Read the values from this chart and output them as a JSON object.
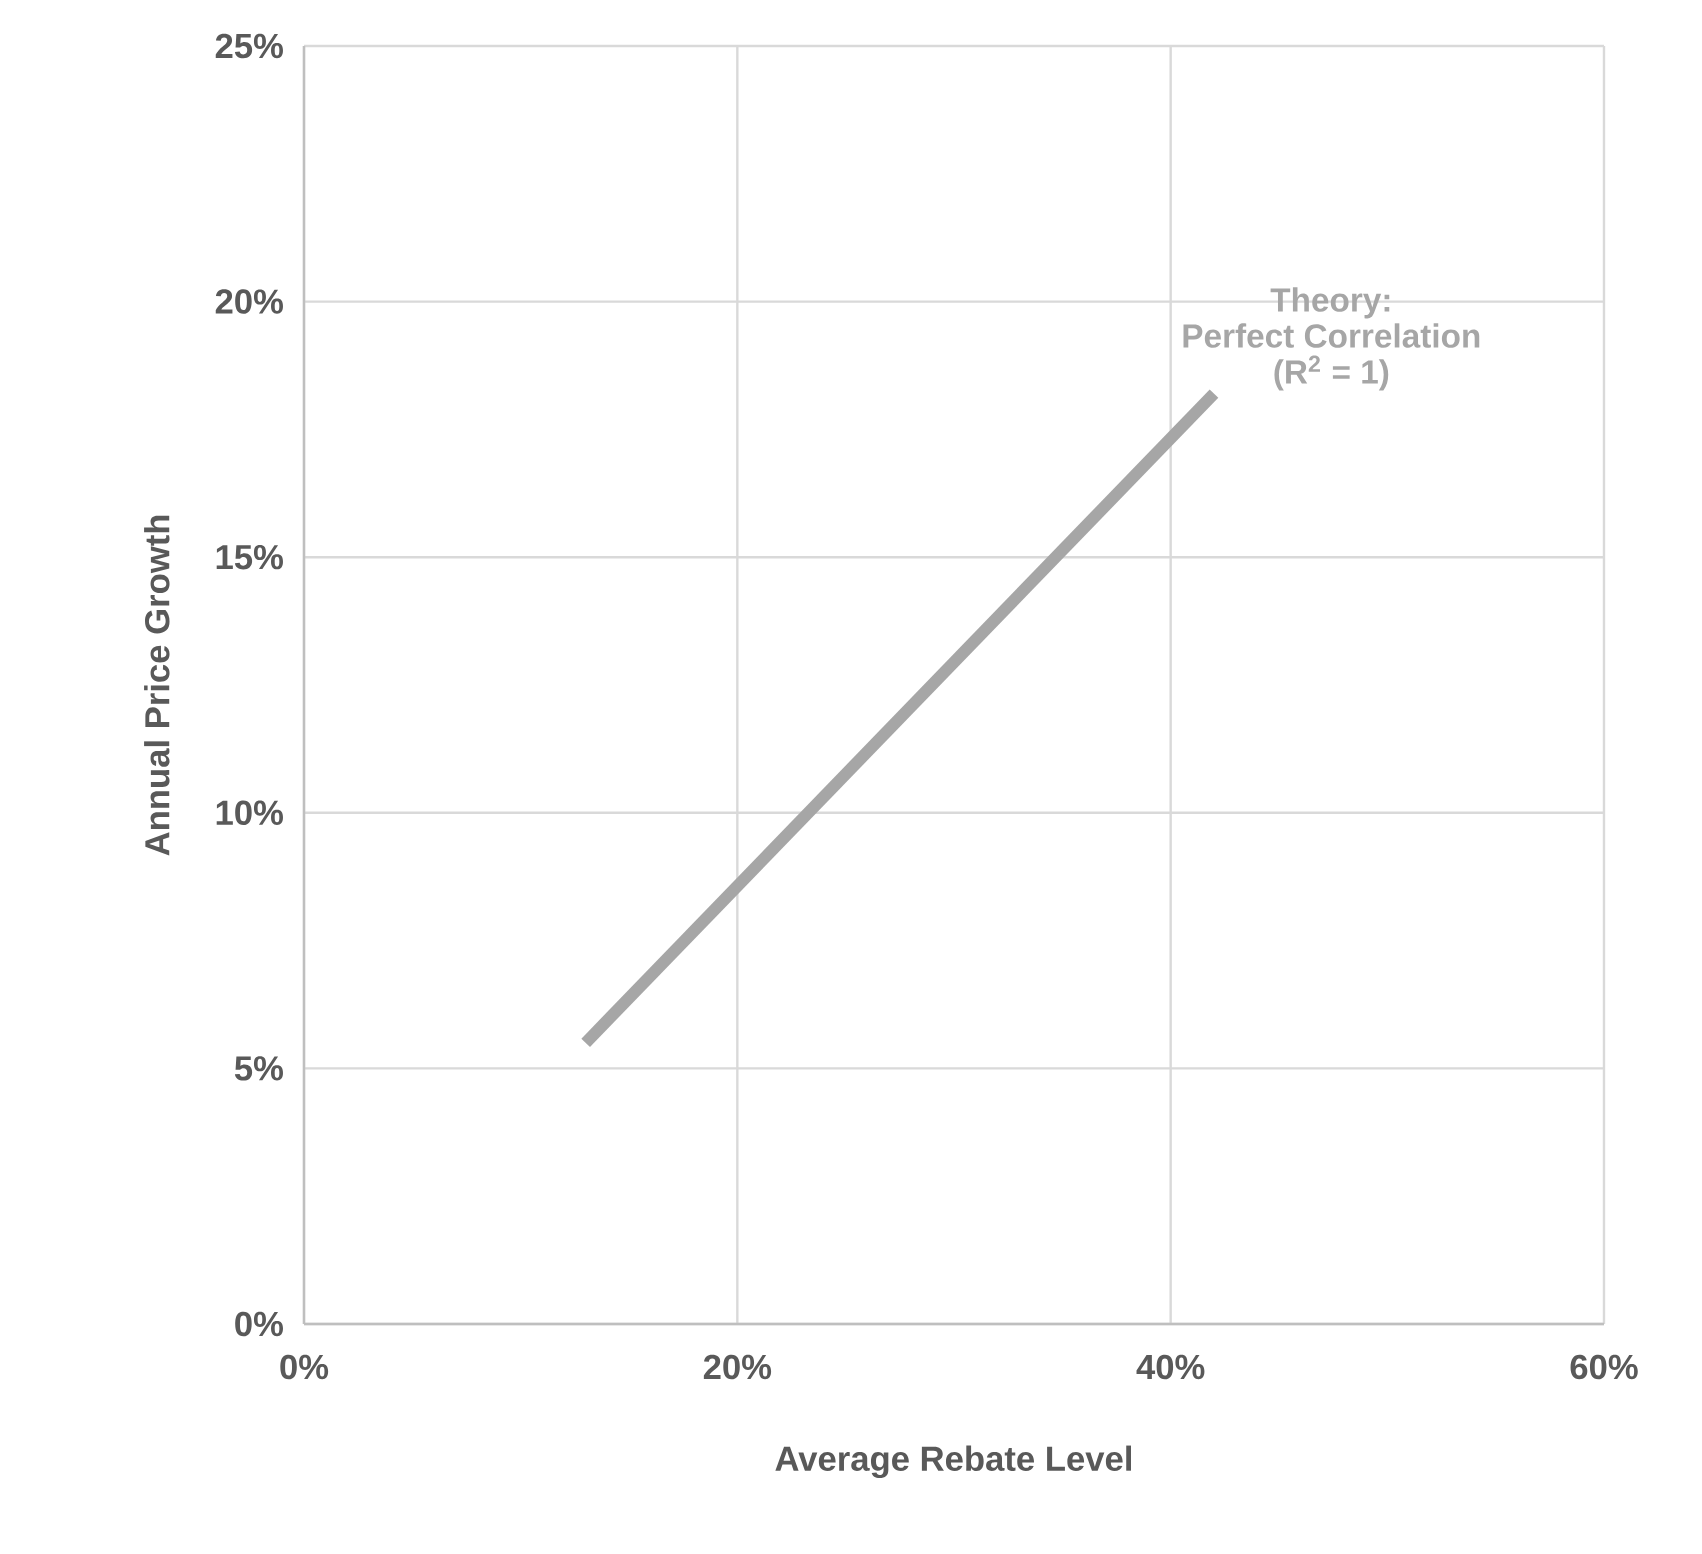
{
  "chart_data": {
    "type": "line",
    "xlabel": "Average Rebate Level",
    "ylabel": "Annual Price Growth",
    "series": [
      {
        "color": "#a6a6a6",
        "x": [
          13,
          42
        ],
        "values": [
          5.5,
          18.2
        ]
      }
    ],
    "xlim": [
      0,
      60
    ],
    "ylim": [
      0,
      25
    ],
    "xticks": [
      {
        "value": 0,
        "label": "0%"
      },
      {
        "value": 20,
        "label": "20%"
      },
      {
        "value": 40,
        "label": "40%"
      },
      {
        "value": 60,
        "label": "60%"
      }
    ],
    "yticks": [
      {
        "value": 0,
        "label": "0%"
      },
      {
        "value": 5,
        "label": "5%"
      },
      {
        "value": 10,
        "label": "10%"
      },
      {
        "value": 15,
        "label": "15%"
      },
      {
        "value": 20,
        "label": "20%"
      },
      {
        "value": 25,
        "label": "25%"
      }
    ],
    "grid": true,
    "marker": "none",
    "line_style": "solid",
    "annotations": [
      "Theory:",
      "Perfect Correlation",
      "(R$^{2}$ = 1)"
    ]
  }
}
